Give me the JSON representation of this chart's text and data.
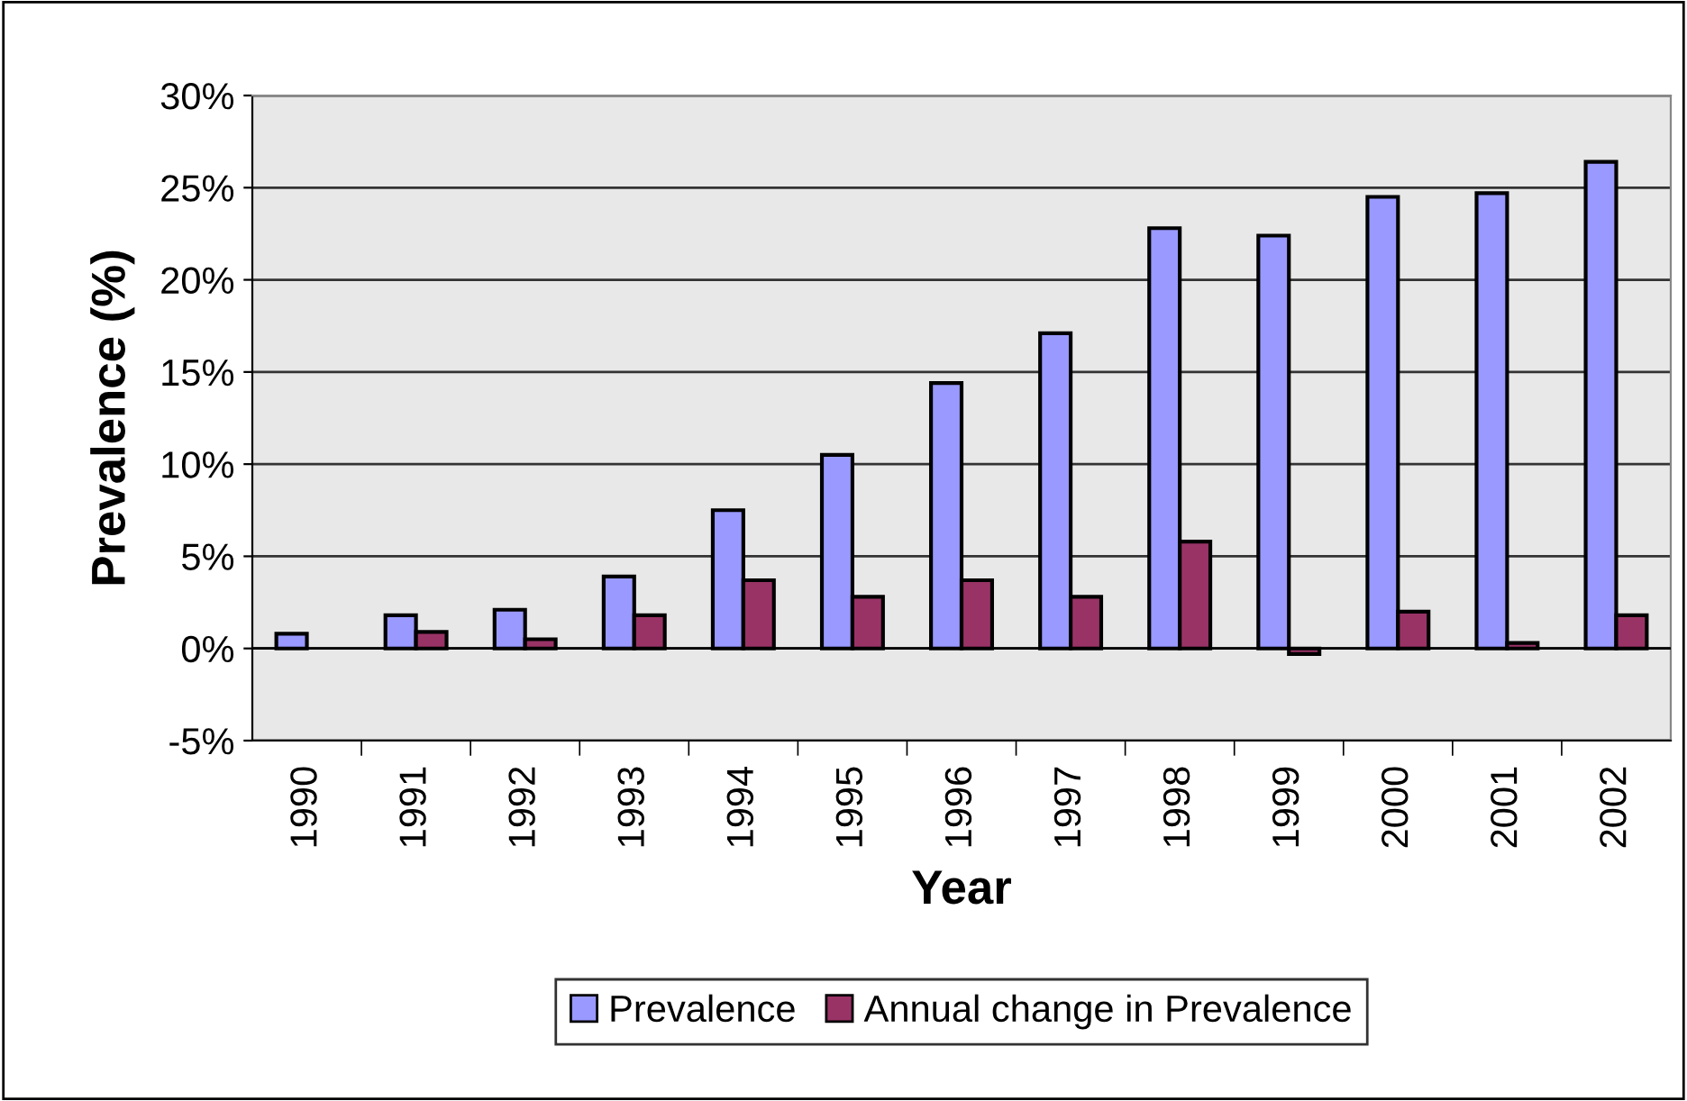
{
  "chart_data": {
    "type": "bar",
    "xlabel": "Year",
    "ylabel": "Prevalence (%)",
    "categories": [
      "1990",
      "1991",
      "1992",
      "1993",
      "1994",
      "1995",
      "1996",
      "1997",
      "1998",
      "1999",
      "2000",
      "2001",
      "2002"
    ],
    "series": [
      {
        "name": "Prevalence",
        "color": "#9999ff",
        "values": [
          0.8,
          1.8,
          2.1,
          3.9,
          7.5,
          10.5,
          14.4,
          17.1,
          22.8,
          22.4,
          24.5,
          24.7,
          26.4
        ]
      },
      {
        "name": "Annual change in Prevalence",
        "color": "#993366",
        "values": [
          null,
          0.9,
          0.5,
          1.8,
          3.7,
          2.8,
          3.7,
          2.8,
          5.8,
          -0.3,
          2.0,
          0.3,
          1.8
        ]
      }
    ],
    "ylim": [
      -5,
      30
    ],
    "yticks": [
      {
        "value": -5,
        "label": "-5%"
      },
      {
        "value": 0,
        "label": "0%"
      },
      {
        "value": 5,
        "label": "5%"
      },
      {
        "value": 10,
        "label": "10%"
      },
      {
        "value": 15,
        "label": "15%"
      },
      {
        "value": 20,
        "label": "20%"
      },
      {
        "value": 25,
        "label": "25%"
      },
      {
        "value": 30,
        "label": "30%"
      }
    ],
    "grid": "y",
    "legend": "bottom"
  }
}
